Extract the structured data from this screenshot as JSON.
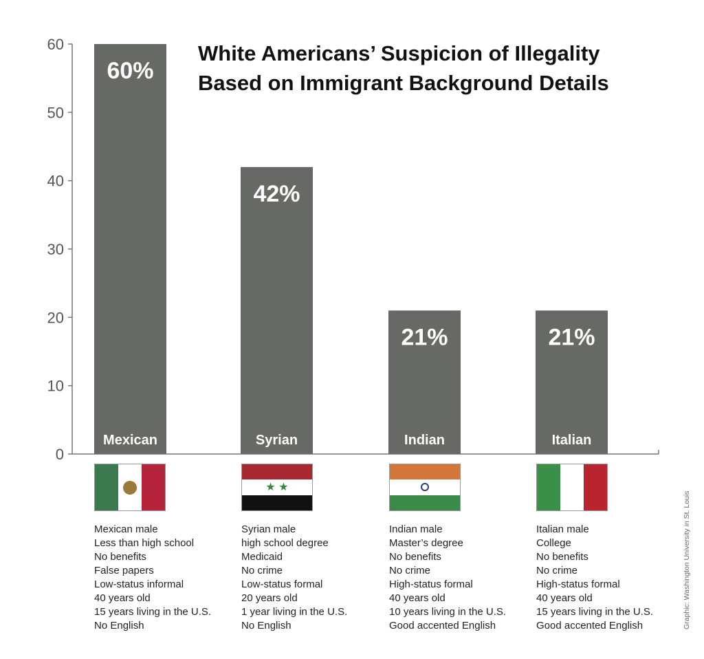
{
  "chart_data": {
    "type": "bar",
    "title_lines": [
      "White Americans’ Suspicion of Illegality",
      "Based on Immigrant Background Details"
    ],
    "categories": [
      "Mexican",
      "Syrian",
      "Indian",
      "Italian"
    ],
    "values": [
      60,
      42,
      21,
      21
    ],
    "data_labels": [
      "60%",
      "42%",
      "21%",
      "21%"
    ],
    "ylim": [
      0,
      60
    ],
    "yticks": [
      0,
      10,
      20,
      30,
      40,
      50,
      60
    ],
    "xlabel": "",
    "ylabel": "",
    "grid": false,
    "bar_color": "#666966"
  },
  "flags": [
    "mexico-flag",
    "syria-flag",
    "india-flag",
    "italy-flag"
  ],
  "descriptions": [
    [
      "Mexican male",
      "Less than high school",
      "No benefits",
      "False papers",
      "Low-status informal",
      "40 years old",
      "15 years living in the U.S.",
      "No English"
    ],
    [
      "Syrian male",
      "high school degree",
      "Medicaid",
      "No crime",
      "Low-status formal",
      "20 years old",
      "1 year living in the U.S.",
      "No English"
    ],
    [
      "Indian male",
      "Master’s degree",
      "No benefits",
      "No crime",
      "High-status formal",
      "40 years old",
      "10 years living in the U.S.",
      "Good accented English"
    ],
    [
      "Italian male",
      "College",
      "No benefits",
      "No crime",
      "High-status formal",
      "40 years old",
      "15 years living in the U.S.",
      "Good accented English"
    ]
  ],
  "credit": "Graphic: Washington University in St. Louis"
}
